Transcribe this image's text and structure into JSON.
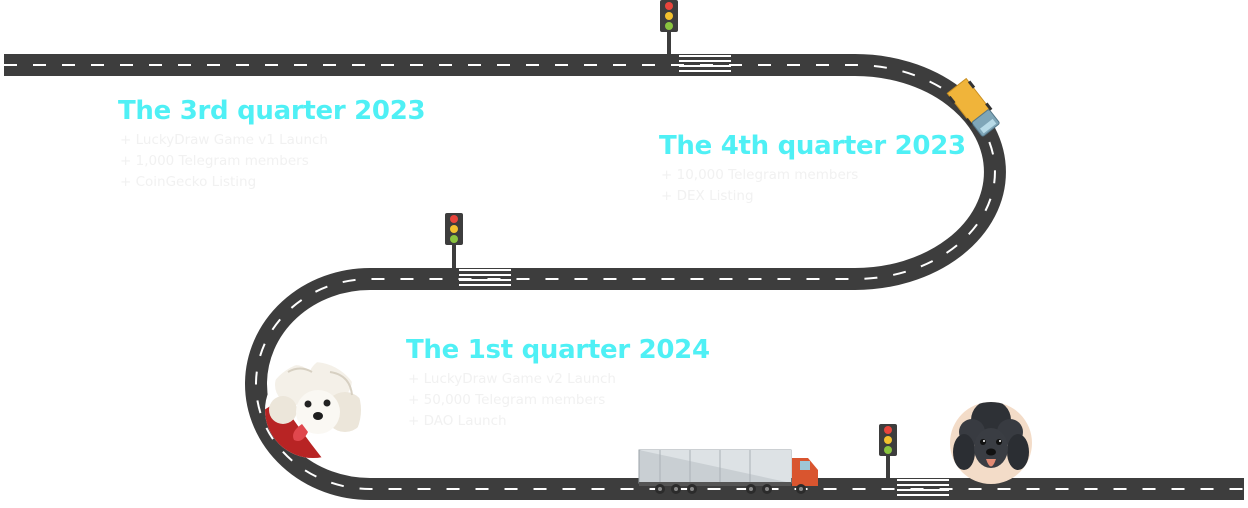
{
  "colors": {
    "heading": "#4ff0f5",
    "item_text": "#f1f1f1",
    "road": "#3d3d3d",
    "road_marking": "#ffffff",
    "light_red": "#e8453c",
    "light_yellow": "#f2c12e",
    "light_green": "#8ac43f"
  },
  "phases": [
    {
      "title": "The 3rd quarter 2023",
      "items": [
        "+ LuckyDraw Game v1 Launch",
        "+ 1,000 Telegram members",
        "+ CoinGecko Listing"
      ]
    },
    {
      "title": "The 4th quarter 2023",
      "items": [
        "+ 10,000 Telegram members",
        "+ DEX Listing"
      ]
    },
    {
      "title": "The 1st quarter 2024",
      "items": [
        "+ LuckyDraw Game v2 Launch",
        "+ 50,000 Telegram members",
        "+ DAO Launch"
      ]
    }
  ],
  "icons": {
    "traffic_light": "traffic-light-icon",
    "crosswalk": "crosswalk-icon",
    "delivery_truck": "delivery-truck-icon",
    "semi_truck": "semi-truck-icon",
    "white_dog": "white-dog-mascot-icon",
    "black_poodle": "black-poodle-avatar-icon"
  }
}
